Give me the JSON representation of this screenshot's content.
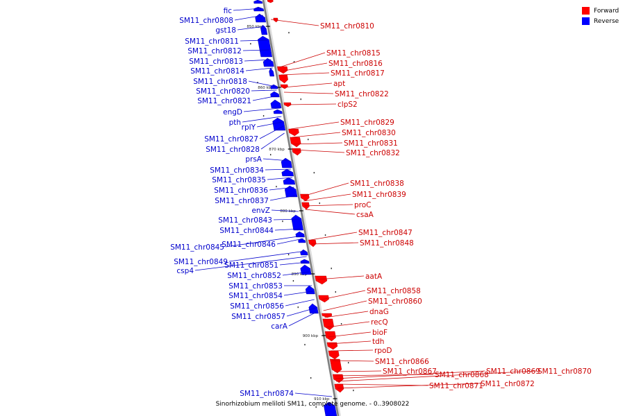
{
  "legend": {
    "forward_label": "Forward",
    "reverse_label": "Reverse",
    "forward_color": "#ff0000",
    "reverse_color": "#0000ff"
  },
  "caption": "Sinorhizobium meliloti SM11, complete genome. - 0..3908022",
  "ticks": [
    "850 kbp",
    "860 kbp",
    "870 kbp",
    "880 kbp",
    "890 kbp",
    "900 kbp",
    "910 kbp"
  ],
  "forward_genes": [
    "SM11_chr0810",
    "SM11_chr0815",
    "SM11_chr0816",
    "SM11_chr0817",
    "apt",
    "SM11_chr0822",
    "clpS2",
    "SM11_chr0829",
    "SM11_chr0830",
    "SM11_chr0831",
    "SM11_chr0832",
    "SM11_chr0838",
    "SM11_chr0839",
    "proC",
    "csaA",
    "SM11_chr0847",
    "SM11_chr0848",
    "aatA",
    "SM11_chr0858",
    "SM11_chr0860",
    "dnaG",
    "recQ",
    "bioF",
    "tdh",
    "rpoD",
    "SM11_chr0866",
    "SM11_chr0867",
    "SM11_chr0868",
    "SM11_chr0869",
    "SM11_chr0870",
    "SM11_chr0871",
    "SM11_chr0872"
  ],
  "reverse_genes": [
    "fic",
    "SM11_chr0808",
    "gst18",
    "SM11_chr0811",
    "SM11_chr0812",
    "SM11_chr0813",
    "SM11_chr0814",
    "SM11_chr0818",
    "SM11_chr0820",
    "SM11_chr0821",
    "engD",
    "pth",
    "rplY",
    "SM11_chr0827",
    "SM11_chr0828",
    "prsA",
    "SM11_chr0834",
    "SM11_chr0835",
    "SM11_chr0836",
    "SM11_chr0837",
    "envZ",
    "SM11_chr0843",
    "SM11_chr0844",
    "SM11_chr0845",
    "SM11_chr0846",
    "SM11_chr0849",
    "csp4",
    "SM11_chr0851",
    "SM11_chr0852",
    "SM11_chr0853",
    "SM11_chr0854",
    "SM11_chr0856",
    "SM11_chr0857",
    "carA",
    "SM11_chr0874"
  ]
}
